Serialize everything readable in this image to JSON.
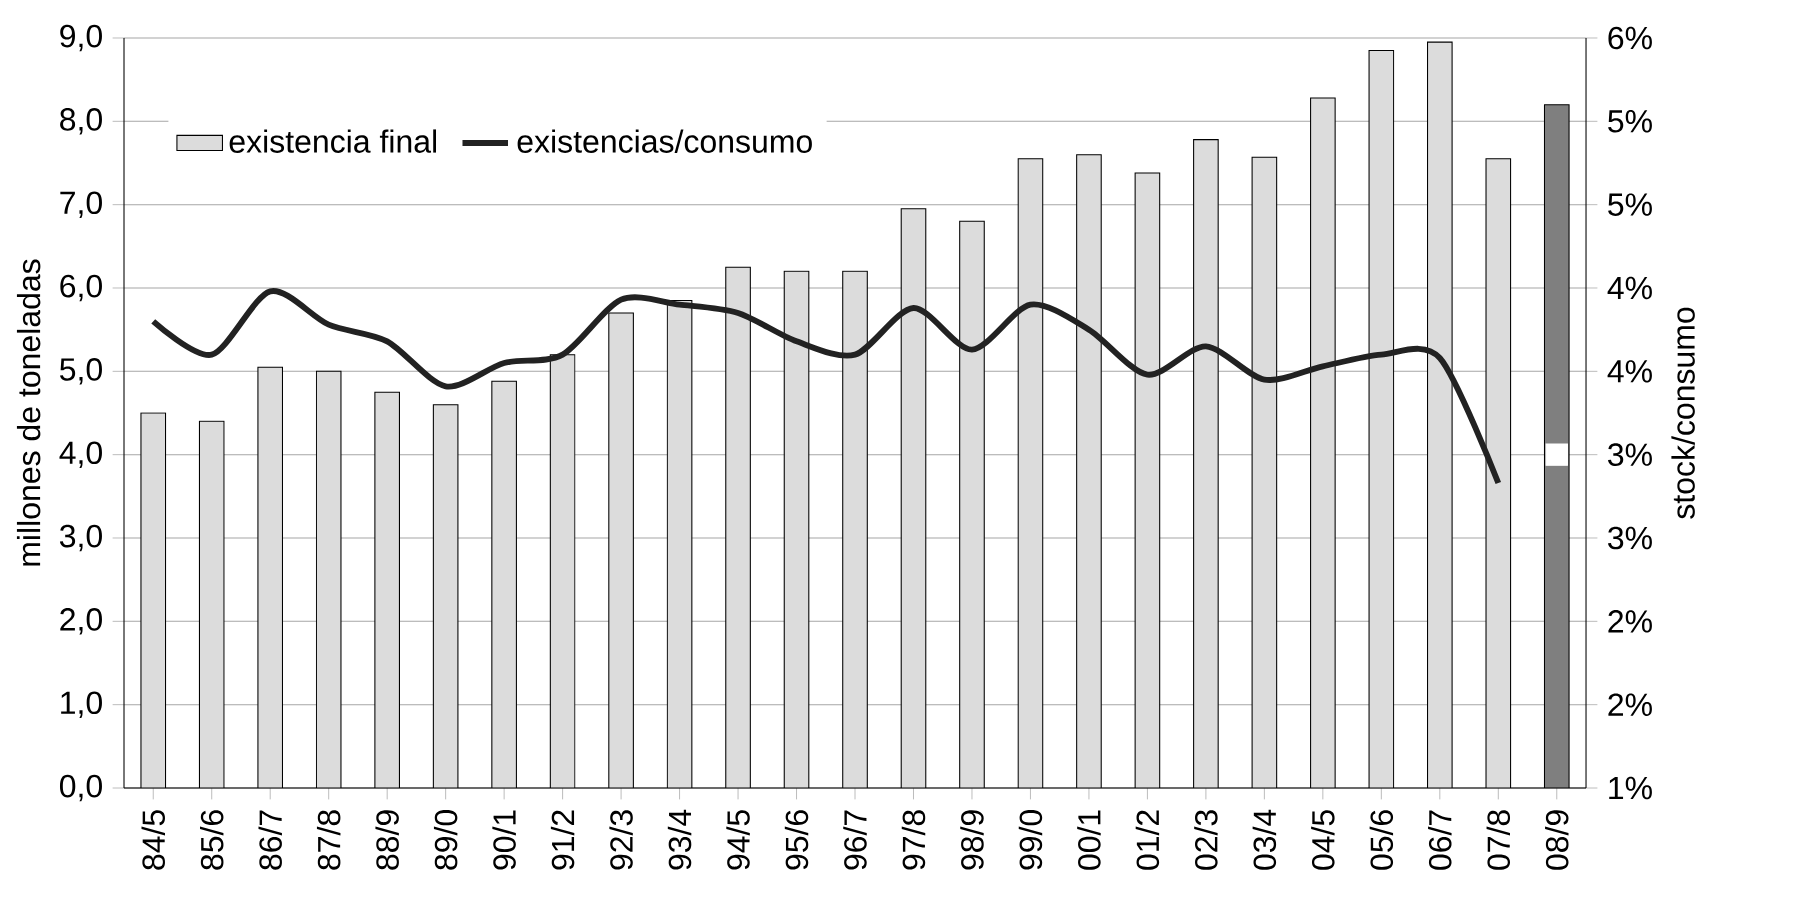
{
  "chart_data": {
    "type": "bar",
    "ylabel": "millones de toneladas",
    "y2label": "stock/consumo",
    "categories": [
      "84/5",
      "85/6",
      "86/7",
      "87/8",
      "88/9",
      "89/0",
      "90/1",
      "91/2",
      "92/3",
      "93/4",
      "94/5",
      "95/6",
      "96/7",
      "97/8",
      "98/9",
      "99/0",
      "00/1",
      "01/2",
      "02/3",
      "03/4",
      "04/5",
      "05/6",
      "06/7",
      "07/8",
      "08/9"
    ],
    "series": [
      {
        "name": "existencia final",
        "color": "#dcdcdc",
        "colors": [
          "#dcdcdc",
          "#dcdcdc",
          "#dcdcdc",
          "#dcdcdc",
          "#dcdcdc",
          "#dcdcdc",
          "#dcdcdc",
          "#dcdcdc",
          "#dcdcdc",
          "#dcdcdc",
          "#dcdcdc",
          "#dcdcdc",
          "#dcdcdc",
          "#dcdcdc",
          "#dcdcdc",
          "#dcdcdc",
          "#dcdcdc",
          "#dcdcdc",
          "#dcdcdc",
          "#dcdcdc",
          "#dcdcdc",
          "#dcdcdc",
          "#dcdcdc",
          "#dcdcdc",
          "#7f7f7f"
        ],
        "values": [
          4.5,
          4.4,
          5.05,
          5.0,
          4.75,
          4.6,
          4.88,
          5.2,
          5.7,
          5.85,
          6.25,
          6.2,
          6.2,
          6.95,
          6.8,
          7.55,
          7.6,
          7.38,
          7.78,
          7.57,
          8.28,
          8.85,
          8.95,
          7.55,
          8.2
        ]
      },
      {
        "name": "existencias/consumo",
        "type": "line",
        "axis": "y2",
        "color": "#222222",
        "line_style": "solid",
        "marker": "none",
        "values": [
          3.8,
          3.6,
          3.98,
          3.78,
          3.68,
          3.41,
          3.55,
          3.6,
          3.93,
          3.9,
          3.85,
          3.68,
          3.6,
          3.88,
          3.63,
          3.9,
          3.75,
          3.48,
          3.65,
          3.45,
          3.53,
          3.6,
          3.58,
          2.83,
          null
        ]
      },
      {
        "type": "scatter",
        "axis": "y2",
        "color": "#ffffff",
        "marker": "square",
        "values": [
          null,
          null,
          null,
          null,
          null,
          null,
          null,
          null,
          null,
          null,
          null,
          null,
          null,
          null,
          null,
          null,
          null,
          null,
          null,
          null,
          null,
          null,
          null,
          null,
          3.0
        ]
      }
    ],
    "ylim": [
      0,
      9
    ],
    "yticks": [
      {
        "value": 0,
        "label": "0,0"
      },
      {
        "value": 1,
        "label": "1,0"
      },
      {
        "value": 2,
        "label": "2,0"
      },
      {
        "value": 3,
        "label": "3,0"
      },
      {
        "value": 4,
        "label": "4,0"
      },
      {
        "value": 5,
        "label": "5,0"
      },
      {
        "value": 6,
        "label": "6,0"
      },
      {
        "value": 7,
        "label": "7,0"
      },
      {
        "value": 8,
        "label": "8,0"
      },
      {
        "value": 9,
        "label": "9,0"
      }
    ],
    "y2lim": [
      1,
      5.5
    ],
    "y2ticks": [
      {
        "value": 1,
        "label": "1%"
      },
      {
        "value": 1.5,
        "label": "2%"
      },
      {
        "value": 2,
        "label": "2%"
      },
      {
        "value": 2.5,
        "label": "3%"
      },
      {
        "value": 3,
        "label": "3%"
      },
      {
        "value": 3.5,
        "label": "4%"
      },
      {
        "value": 4,
        "label": "4%"
      },
      {
        "value": 4.5,
        "label": "5%"
      },
      {
        "value": 5,
        "label": "5%"
      },
      {
        "value": 5.5,
        "label": "6%"
      }
    ],
    "grid": "y",
    "legend": "top left"
  }
}
